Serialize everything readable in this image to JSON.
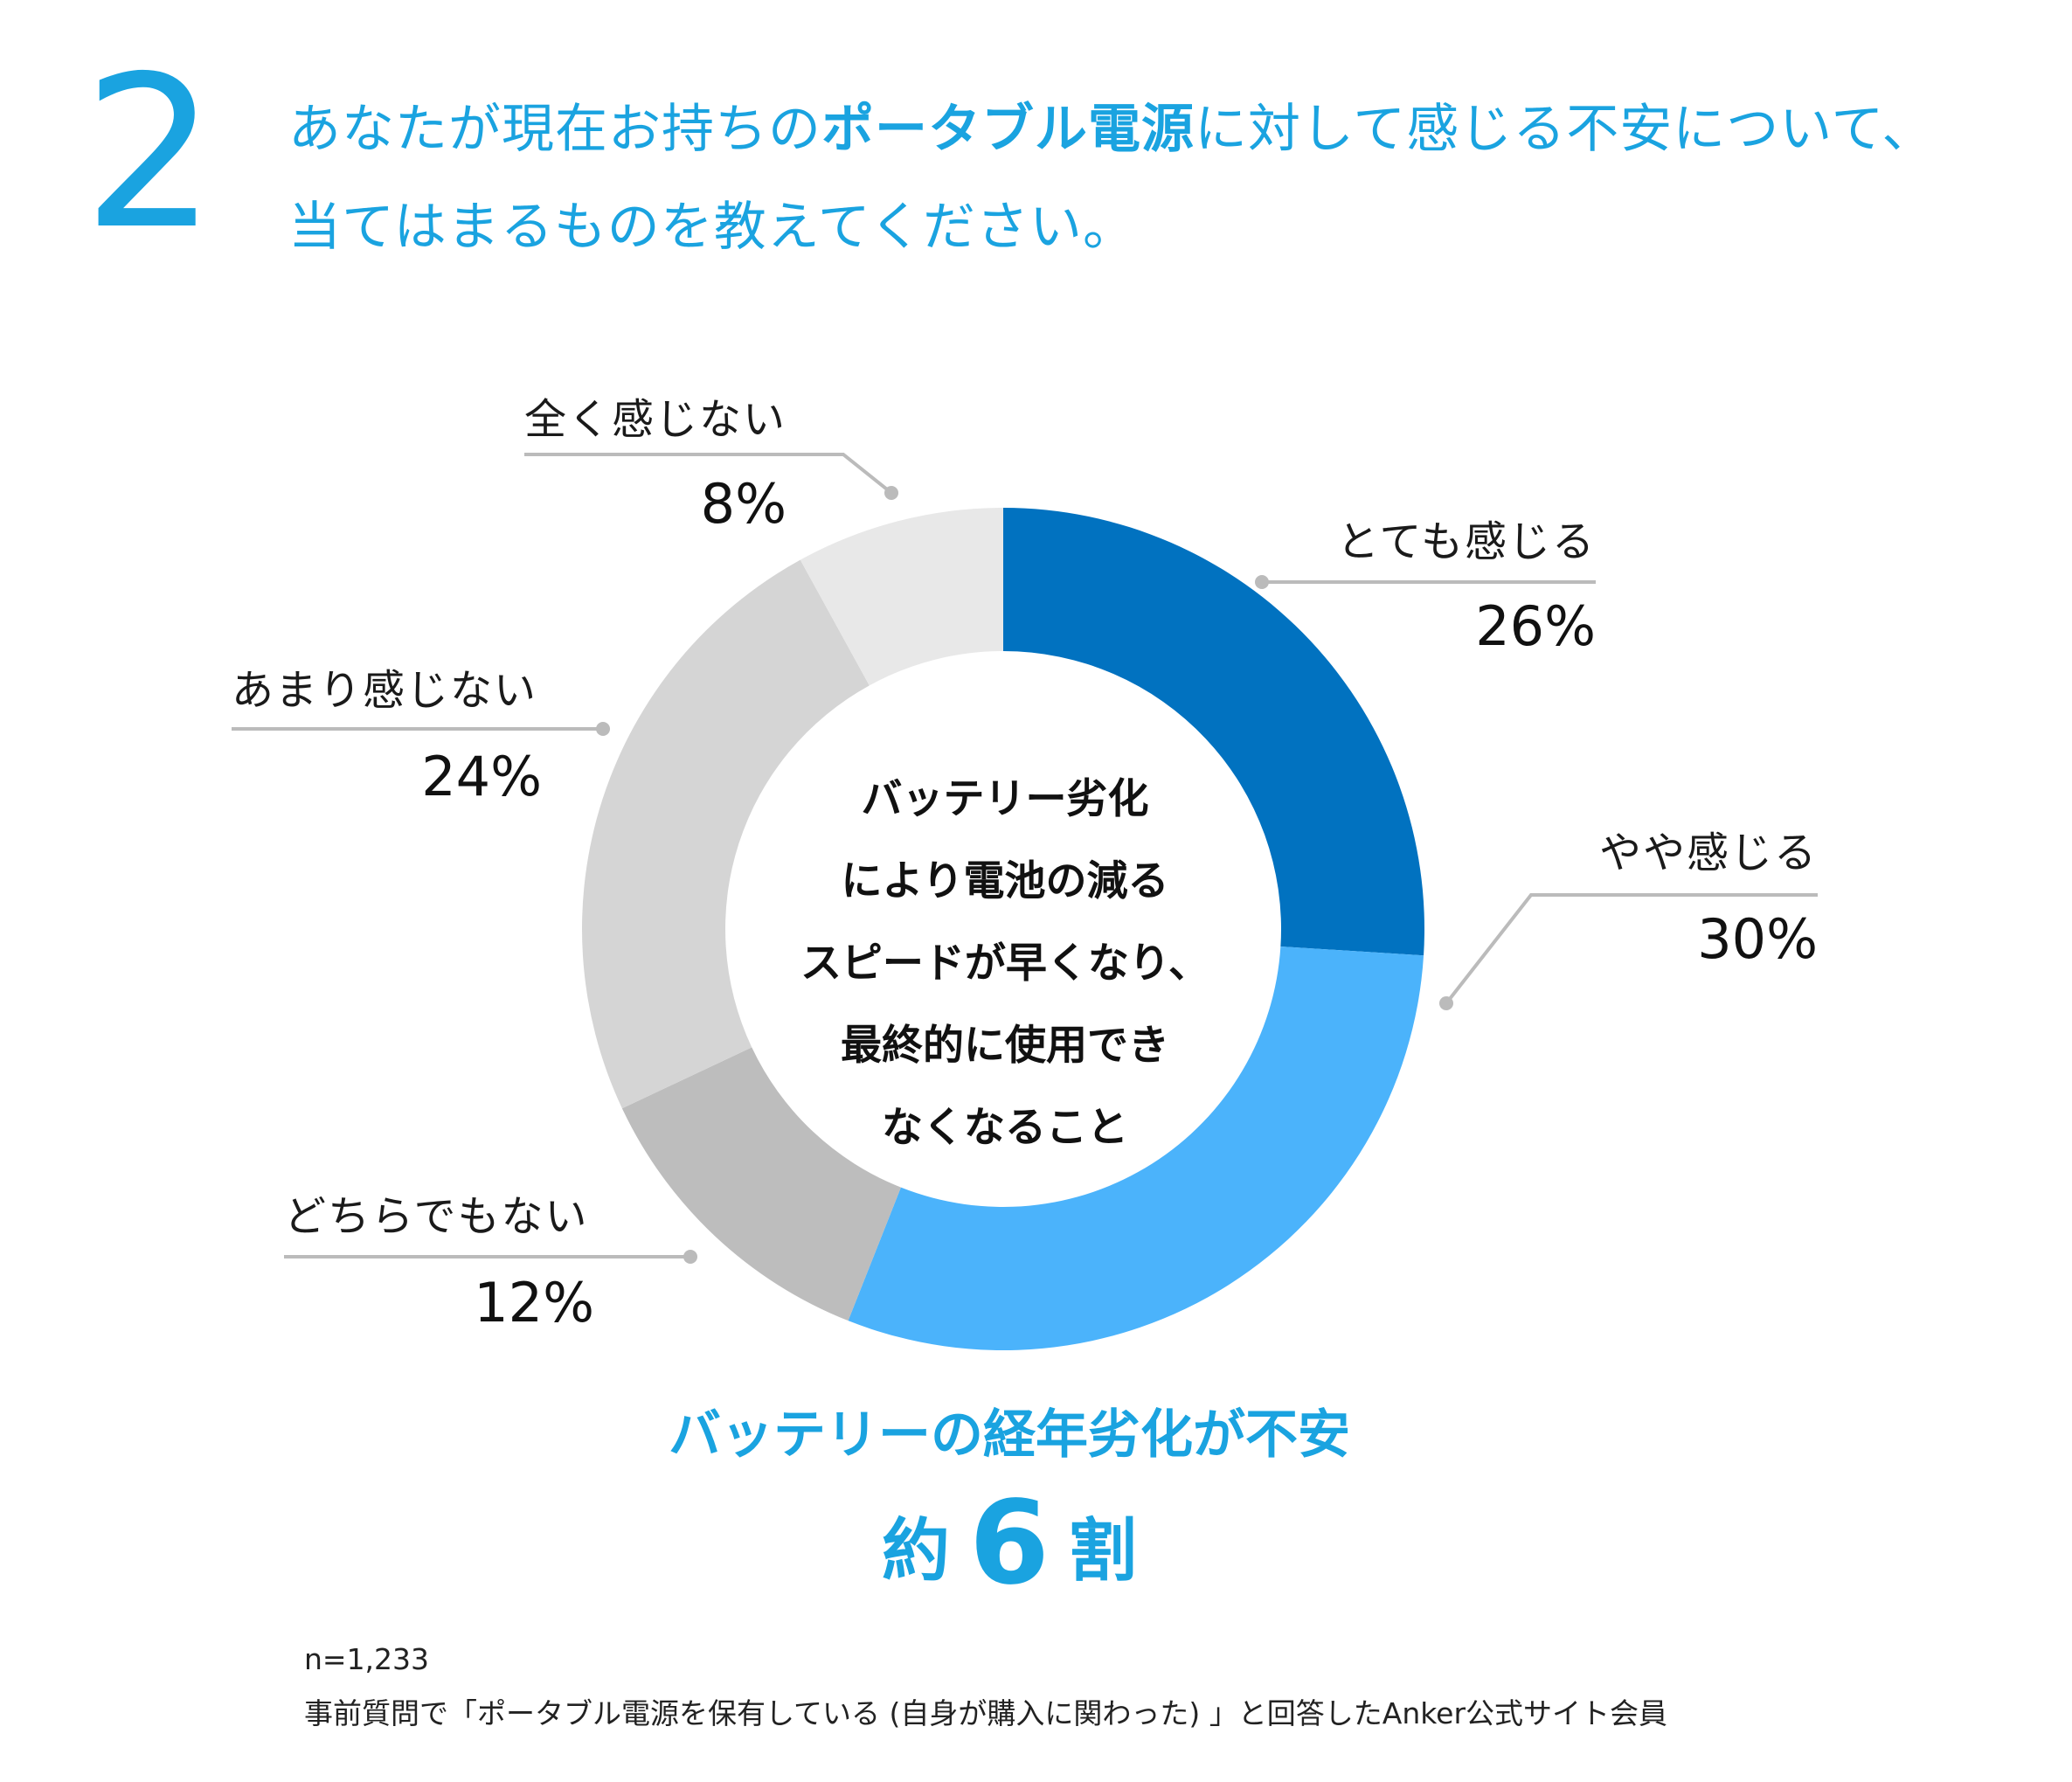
{
  "question": {
    "number": "2",
    "line1_pre": "あなたが現在お持ちの",
    "line1_bold": "ポータブル電源",
    "line1_post": "に対して感じる不安について、",
    "line2": "当てはまるものを教えてください。"
  },
  "chart_data": {
    "type": "pie",
    "style": "donut",
    "categories": [
      "とても感じる",
      "やや感じる",
      "どちらでもない",
      "あまり感じない",
      "全く感じない"
    ],
    "values": [
      26,
      30,
      12,
      24,
      8
    ],
    "value_labels": [
      "26%",
      "30%",
      "12%",
      "24%",
      "8%"
    ],
    "colors": [
      "#0172c0",
      "#4bb3fb",
      "#bdbdbd",
      "#d5d5d5",
      "#e8e8e8"
    ],
    "center_text": [
      "バッテリー劣化",
      "により電池の減る",
      "スピードが早くなり、",
      "最終的に使用でき",
      "なくなること"
    ],
    "unit": "%"
  },
  "summary": {
    "line1": "バッテリーの経年劣化が不安",
    "prefix": "約",
    "number": "6",
    "suffix": "割"
  },
  "footnote": {
    "n": "n=1,233",
    "note": "事前質問で「ポータブル電源を保有している (自身が購入に関わった) 」と回答したAnker公式サイト会員"
  },
  "colors": {
    "accent": "#1aa3e0",
    "leader_line": "#bbbbbb"
  }
}
